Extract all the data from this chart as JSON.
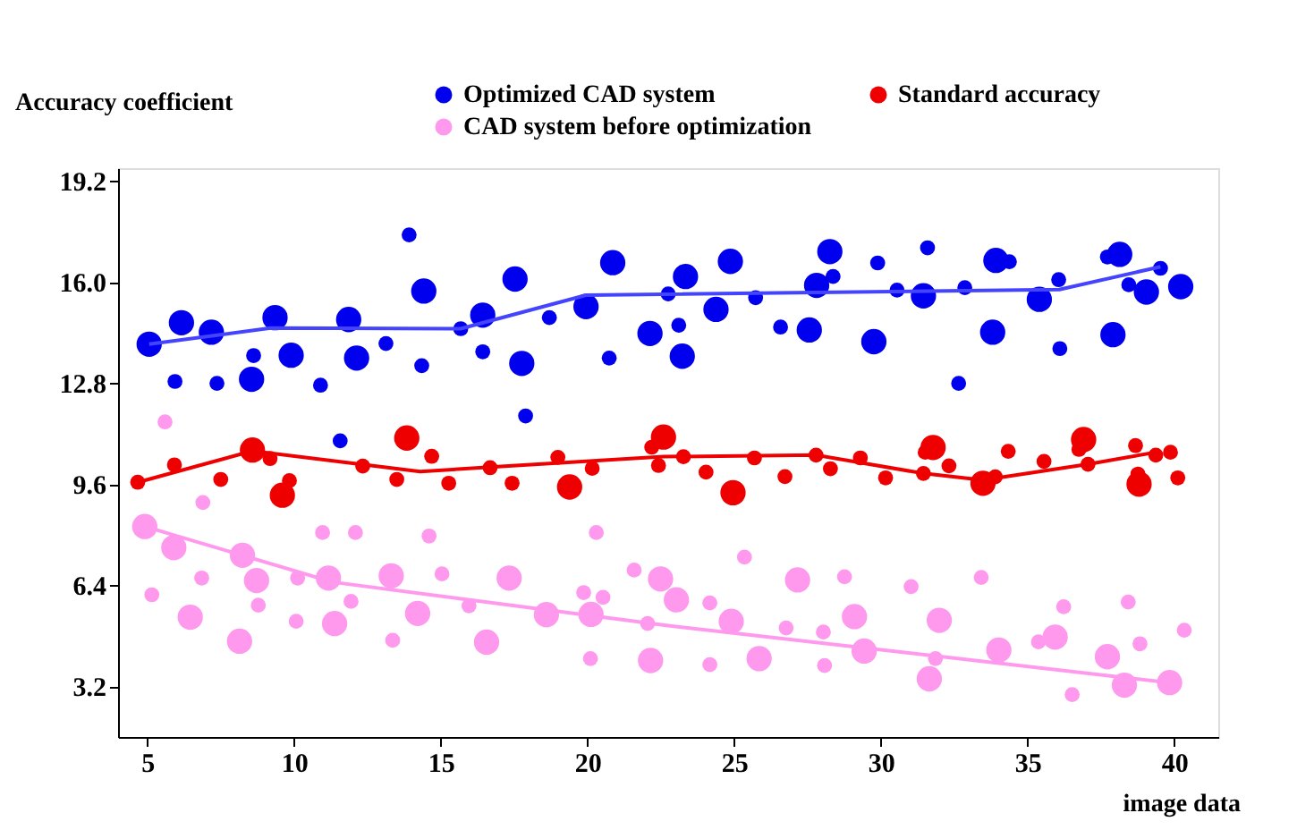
{
  "chart_data": {
    "type": "bubble",
    "xlabel": "image data",
    "ylabel": "Accuracy coefficient",
    "xlim": [
      4,
      41.5
    ],
    "ylim": [
      1.6,
      19.6
    ],
    "xticks": [
      5,
      10,
      15,
      20,
      25,
      30,
      35,
      40
    ],
    "yticks": [
      3.2,
      6.4,
      9.6,
      12.8,
      {
        "value": 16,
        "label": "16.0"
      },
      19.2
    ],
    "grid": false,
    "legend": "top right",
    "marker": "circle",
    "series": [
      {
        "name": "Optimized CAD system",
        "color": "#0000ee",
        "type": "bubble",
        "x": [
          5.06,
          6.16,
          7.18,
          9.35,
          11.86,
          13.13,
          8.62,
          9.9,
          12.13,
          5.94,
          7.37,
          8.55,
          10.9,
          13.92,
          14.42,
          14.35,
          15.68,
          16.43,
          16.43,
          17.53,
          17.76,
          17.89,
          18.7,
          19.95,
          20.86,
          20.74,
          22.13,
          11.57,
          23.34,
          22.75,
          24.38,
          24.87,
          23.11,
          23.23,
          25.73,
          26.58,
          27.56,
          27.81,
          28.26,
          28.37,
          29.89,
          29.76,
          30.55,
          31.45,
          31.59,
          32.65,
          32.86,
          33.81,
          33.92,
          34.38,
          35.4,
          36.06,
          36.1,
          37.91,
          37.72,
          38.14,
          38.45,
          39.05,
          39.53,
          40.22
        ],
        "values": [
          14.03,
          14.71,
          14.41,
          14.87,
          14.81,
          14.05,
          13.67,
          13.68,
          13.59,
          12.85,
          12.79,
          12.92,
          12.73,
          17.49,
          15.71,
          13.35,
          14.52,
          14.95,
          13.79,
          16.09,
          13.42,
          11.76,
          14.87,
          15.22,
          16.61,
          13.59,
          14.37,
          10.97,
          16.17,
          15.62,
          15.13,
          16.65,
          14.63,
          13.65,
          15.5,
          14.57,
          14.48,
          15.89,
          16.96,
          16.17,
          16.6,
          14.11,
          15.74,
          15.56,
          17.08,
          12.79,
          15.82,
          14.41,
          16.68,
          16.64,
          15.45,
          16.07,
          13.89,
          14.33,
          16.79,
          16.87,
          15.91,
          15.68,
          16.43,
          15.85
        ],
        "sizes": [
          1,
          1,
          1,
          1,
          1,
          0.35,
          0.35,
          1,
          1,
          0.35,
          0.35,
          1,
          0.35,
          0.35,
          1,
          0.35,
          0.35,
          1,
          0.35,
          1,
          1,
          0.35,
          0.35,
          1,
          1,
          0.35,
          1,
          0.35,
          1,
          0.35,
          1,
          1,
          0.35,
          1,
          0.35,
          0.35,
          1,
          1,
          1,
          0.35,
          0.35,
          1,
          0.35,
          1,
          0.35,
          0.35,
          0.35,
          1,
          1,
          0.35,
          1,
          0.35,
          0.35,
          1,
          0.35,
          1,
          0.35,
          1,
          0.35,
          1
        ]
      },
      {
        "name": "Standard accuracy",
        "color": "#ee0000",
        "type": "bubble",
        "x": [
          4.67,
          5.92,
          7.5,
          8.58,
          9.18,
          9.84,
          9.6,
          12.34,
          13.5,
          13.84,
          14.69,
          15.27,
          16.68,
          17.43,
          18.99,
          19.39,
          20.16,
          22.19,
          22.42,
          22.59,
          23.27,
          24.04,
          24.96,
          25.69,
          26.73,
          27.79,
          28.28,
          29.3,
          30.16,
          31.45,
          31.78,
          31.51,
          32.32,
          33.48,
          33.9,
          34.34,
          35.56,
          37.06,
          36.91,
          36.75,
          38.68,
          38.8,
          38.76,
          39.37,
          39.87,
          40.12
        ],
        "values": [
          9.66,
          10.21,
          9.75,
          10.68,
          10.41,
          9.71,
          9.25,
          10.17,
          9.75,
          11.06,
          10.48,
          9.63,
          10.12,
          9.63,
          10.45,
          9.51,
          10.1,
          10.77,
          10.19,
          11.09,
          10.47,
          9.98,
          9.33,
          10.43,
          9.84,
          10.52,
          10.09,
          10.43,
          9.8,
          9.94,
          10.76,
          10.61,
          10.18,
          9.63,
          9.83,
          10.64,
          10.32,
          10.23,
          11.01,
          10.7,
          10.82,
          9.6,
          9.92,
          10.52,
          10.61,
          9.8
        ],
        "sizes": [
          0.35,
          0.35,
          0.35,
          1,
          0.35,
          0.35,
          1,
          0.35,
          0.35,
          1,
          0.35,
          0.35,
          0.35,
          0.35,
          0.35,
          1,
          0.35,
          0.35,
          0.35,
          1,
          0.35,
          0.35,
          1,
          0.35,
          0.35,
          0.35,
          0.35,
          0.35,
          0.35,
          0.35,
          1,
          0.35,
          0.35,
          1,
          0.35,
          0.35,
          0.35,
          0.35,
          1,
          0.35,
          0.35,
          1,
          0.35,
          0.35,
          0.35,
          0.35
        ]
      },
      {
        "name": "CAD system before optimization",
        "color": "#ff99ee",
        "type": "bubble",
        "x": [
          4.91,
          5.6,
          6.89,
          5.9,
          6.85,
          5.15,
          6.46,
          8.24,
          8.72,
          8.78,
          8.14,
          10.07,
          10.12,
          10.97,
          11.17,
          11.38,
          12.09,
          11.94,
          13.31,
          13.36,
          14.21,
          14.6,
          15.04,
          15.96,
          16.56,
          17.33,
          18.6,
          19.87,
          20.12,
          20.1,
          20.3,
          20.53,
          21.59,
          22.05,
          22.15,
          22.49,
          23.03,
          24.17,
          24.17,
          24.9,
          25.35,
          25.85,
          26.77,
          27.16,
          28.04,
          28.08,
          28.76,
          29.1,
          29.43,
          31.03,
          31.65,
          31.86,
          31.99,
          33.42,
          34.02,
          35.37,
          35.94,
          36.23,
          36.52,
          37.72,
          38.3,
          38.43,
          38.83,
          39.84,
          40.34
        ],
        "values": [
          8.26,
          11.57,
          9.02,
          7.59,
          6.63,
          6.1,
          5.39,
          7.35,
          6.55,
          5.77,
          4.63,
          5.26,
          6.63,
          8.07,
          6.63,
          5.19,
          8.07,
          5.89,
          6.7,
          4.66,
          5.51,
          7.96,
          6.76,
          5.75,
          4.6,
          6.63,
          5.47,
          6.17,
          5.48,
          4.08,
          8.07,
          6.02,
          6.88,
          5.19,
          4.02,
          6.6,
          5.94,
          5.84,
          3.89,
          5.26,
          7.29,
          4.08,
          5.05,
          6.57,
          4.92,
          3.86,
          6.67,
          5.41,
          4.32,
          6.36,
          3.44,
          4.08,
          5.29,
          6.65,
          4.35,
          4.61,
          4.76,
          5.72,
          2.94,
          4.14,
          3.24,
          5.87,
          4.55,
          3.32,
          4.98
        ],
        "sizes": [
          1,
          0.35,
          0.35,
          1,
          0.35,
          0.35,
          1,
          1,
          1,
          0.35,
          1,
          0.35,
          0.35,
          0.35,
          1,
          1,
          0.35,
          0.35,
          1,
          0.35,
          1,
          0.35,
          0.35,
          0.35,
          1,
          1,
          1,
          0.35,
          1,
          0.35,
          0.35,
          0.35,
          0.35,
          0.35,
          1,
          1,
          1,
          0.35,
          0.35,
          1,
          0.35,
          1,
          0.35,
          1,
          0.35,
          0.35,
          0.35,
          1,
          1,
          0.35,
          1,
          0.35,
          1,
          0.35,
          1,
          0.35,
          1,
          0.35,
          0.35,
          1,
          1,
          0.35,
          0.35,
          1,
          0.35
        ]
      },
      {
        "color": "#4444ff",
        "type": "line",
        "marker": "none",
        "x": [
          5.06,
          9.2,
          15.68,
          19.95,
          36.08,
          39.53
        ],
        "values": [
          14.03,
          14.54,
          14.52,
          15.58,
          15.76,
          16.48
        ]
      },
      {
        "color": "#ee0000",
        "type": "line",
        "marker": "none",
        "x": [
          4.67,
          8.58,
          14.3,
          16.68,
          22.59,
          27.79,
          31.45,
          33.48,
          37.06,
          39.37
        ],
        "values": [
          9.66,
          10.65,
          10.0,
          10.14,
          10.47,
          10.52,
          9.94,
          9.73,
          10.23,
          10.61
        ]
      },
      {
        "color": "#ff99ee",
        "type": "line",
        "marker": "none",
        "x": [
          4.91,
          11.32,
          22.69,
          39.84
        ],
        "values": [
          8.26,
          6.5,
          5.13,
          3.32
        ]
      }
    ]
  }
}
